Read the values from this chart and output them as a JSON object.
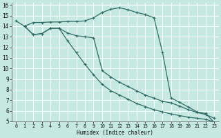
{
  "xlabel": "Humidex (Indice chaleur)",
  "xlim": [
    -0.5,
    23.5
  ],
  "ylim": [
    5,
    16.2
  ],
  "yticks": [
    5,
    6,
    7,
    8,
    9,
    10,
    11,
    12,
    13,
    14,
    15,
    16
  ],
  "xticks": [
    0,
    1,
    2,
    3,
    4,
    5,
    6,
    7,
    8,
    9,
    10,
    11,
    12,
    13,
    14,
    15,
    16,
    17,
    18,
    19,
    20,
    21,
    22,
    23
  ],
  "bg_color": "#c5e8e0",
  "grid_color": "#ffffff",
  "line_color": "#2e6b65",
  "line1_x": [
    0,
    1,
    2,
    3,
    4,
    5,
    6,
    7,
    8,
    9,
    10,
    11,
    12,
    13,
    14,
    15,
    16,
    17,
    18,
    19,
    20,
    21,
    22,
    23
  ],
  "line1_y": [
    14.5,
    14.0,
    14.35,
    14.35,
    14.4,
    14.4,
    14.45,
    14.45,
    14.5,
    14.8,
    15.3,
    15.6,
    15.75,
    15.55,
    15.3,
    15.1,
    14.8,
    11.5,
    7.2,
    6.8,
    6.35,
    5.9,
    5.75,
    4.9
  ],
  "line2_x": [
    1,
    2,
    3,
    4,
    5,
    6,
    7,
    8,
    9,
    10,
    11,
    12,
    13,
    14,
    15,
    16,
    17,
    18,
    19,
    20,
    21,
    22,
    23
  ],
  "line2_y": [
    14.0,
    13.2,
    13.3,
    13.8,
    13.8,
    13.35,
    13.1,
    13.0,
    12.9,
    9.8,
    9.2,
    8.7,
    8.3,
    7.9,
    7.5,
    7.2,
    6.9,
    6.75,
    6.45,
    6.1,
    5.85,
    5.65,
    5.3
  ],
  "line3_x": [
    1,
    2,
    3,
    4,
    5,
    6,
    7,
    8,
    9,
    10,
    11,
    12,
    13,
    14,
    15,
    16,
    17,
    18,
    19,
    20,
    21,
    22,
    23
  ],
  "line3_y": [
    14.0,
    13.2,
    13.3,
    13.8,
    13.8,
    12.6,
    11.5,
    10.4,
    9.4,
    8.5,
    7.9,
    7.5,
    7.1,
    6.7,
    6.4,
    6.1,
    5.9,
    5.7,
    5.55,
    5.4,
    5.3,
    5.2,
    4.95
  ]
}
